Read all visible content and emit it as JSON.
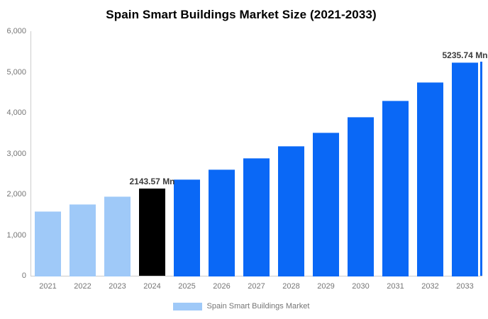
{
  "title": "Spain Smart Buildings Market Size (2021-2033)",
  "legend": {
    "label": "Spain Smart Buildings Market",
    "swatch_color": "#9fc9f8"
  },
  "colors": {
    "historical_bar": "#9fc9f8",
    "base_year_bar": "#000000",
    "forecast_bar": "#0a68f6",
    "axis_line": "#cccccc",
    "axis_label": "#757575",
    "data_label": "#3c3c3c",
    "title": "#000000"
  },
  "chart_data": {
    "type": "bar",
    "title": "Spain Smart Buildings Market Size (2021-2033)",
    "unit": "Mn",
    "categories": [
      "2021",
      "2022",
      "2023",
      "2024",
      "2025",
      "2026",
      "2027",
      "2028",
      "2029",
      "2030",
      "2031",
      "2032",
      "2033"
    ],
    "series": [
      {
        "name": "Spain Smart Buildings Market",
        "values": [
          1580,
          1752,
          1946,
          2143.57,
          2367,
          2614,
          2887,
          3188,
          3520,
          3888,
          4293,
          4741,
          5235.74
        ]
      }
    ],
    "bar_color_keys": [
      "historical_bar",
      "historical_bar",
      "historical_bar",
      "base_year_bar",
      "forecast_bar",
      "forecast_bar",
      "forecast_bar",
      "forecast_bar",
      "forecast_bar",
      "forecast_bar",
      "forecast_bar",
      "forecast_bar",
      "forecast_bar"
    ],
    "data_labels": [
      {
        "index": 3,
        "category": "2024",
        "text": "2143.57 Mn"
      },
      {
        "index": 12,
        "category": "2033",
        "text": "5235.74 Mn"
      }
    ],
    "xlabel": "",
    "ylabel": "",
    "ylim": [
      0,
      6000
    ],
    "yticks": [
      {
        "value": 0,
        "label": "0"
      },
      {
        "value": 1000,
        "label": "1,000"
      },
      {
        "value": 2000,
        "label": "2,000"
      },
      {
        "value": 3000,
        "label": "3,000"
      },
      {
        "value": 4000,
        "label": "4,000"
      },
      {
        "value": 5000,
        "label": "5,000"
      },
      {
        "value": 6000,
        "label": "6,000"
      }
    ],
    "grid": false,
    "legend_position": "bottom"
  }
}
